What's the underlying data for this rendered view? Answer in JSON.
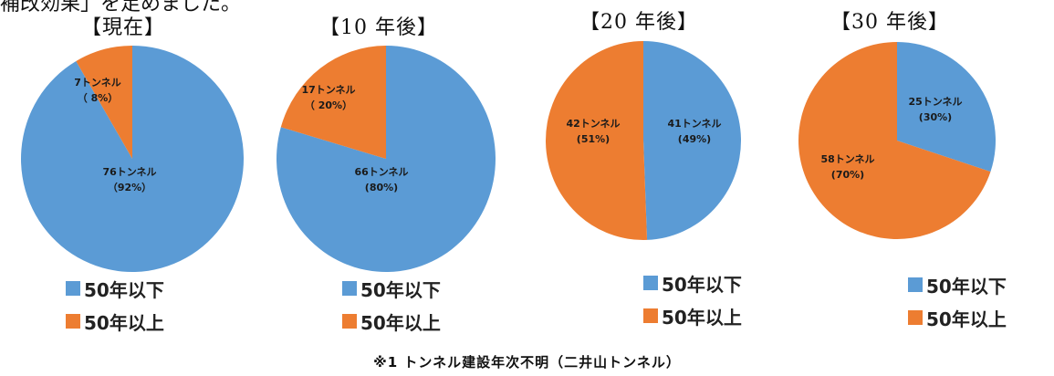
{
  "header_fragment": "補改効果」を足めました。",
  "legend": {
    "items": [
      {
        "label": "50年以下",
        "color": "#5B9BD5"
      },
      {
        "label": "50年以上",
        "color": "#ED7D31"
      }
    ]
  },
  "chart_data": [
    {
      "type": "pie",
      "title": "【現在】",
      "categories": [
        "50年以下",
        "50年以上"
      ],
      "values": [
        76,
        7
      ],
      "percents": [
        92,
        8
      ],
      "labels": [
        {
          "line1": "76トンネル",
          "line2": "（92%）"
        },
        {
          "line1": "7トンネル",
          "line2": "（ 8%）"
        }
      ],
      "colors": [
        "#5B9BD5",
        "#ED7D31"
      ]
    },
    {
      "type": "pie",
      "title": "【10 年後】",
      "categories": [
        "50年以下",
        "50年以上"
      ],
      "values": [
        66,
        17
      ],
      "percents": [
        80,
        20
      ],
      "labels": [
        {
          "line1": "66トンネル",
          "line2": "(80%)"
        },
        {
          "line1": "17トンネル",
          "line2": "（ 20%）"
        }
      ],
      "colors": [
        "#5B9BD5",
        "#ED7D31"
      ]
    },
    {
      "type": "pie",
      "title": "【20 年後】",
      "categories": [
        "50年以下",
        "50年以上"
      ],
      "values": [
        41,
        42
      ],
      "percents": [
        49,
        51
      ],
      "labels": [
        {
          "line1": "41トンネル",
          "line2": "(49%)"
        },
        {
          "line1": "42トンネル",
          "line2": "(51%)"
        }
      ],
      "colors": [
        "#5B9BD5",
        "#ED7D31"
      ]
    },
    {
      "type": "pie",
      "title": "【30 年後】",
      "categories": [
        "50年以下",
        "50年以上"
      ],
      "values": [
        25,
        58
      ],
      "percents": [
        30,
        70
      ],
      "labels": [
        {
          "line1": "25トンネル",
          "line2": "(30%)"
        },
        {
          "line1": "58トンネル",
          "line2": "(70%)"
        }
      ],
      "colors": [
        "#5B9BD5",
        "#ED7D31"
      ]
    }
  ],
  "footnote": "※1 トンネル建設年次不明（二井山トンネル）"
}
